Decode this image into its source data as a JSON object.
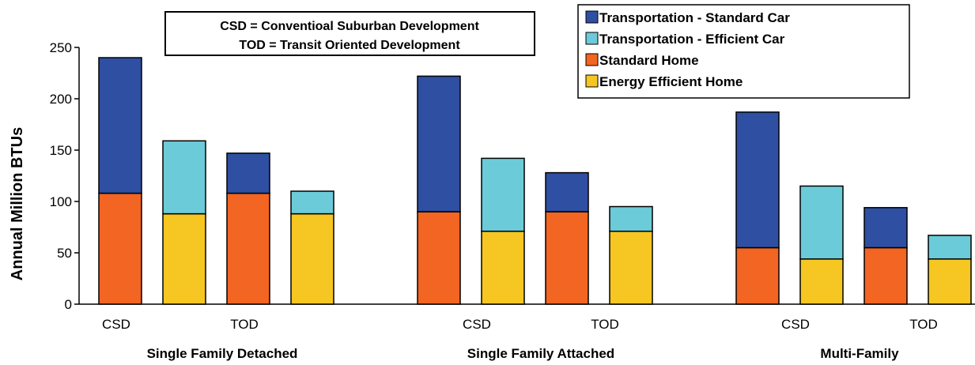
{
  "chart_data": {
    "type": "bar",
    "stacked": true,
    "ylabel": "Annual Million BTUs",
    "ylim": [
      0,
      250
    ],
    "yticks": [
      0,
      50,
      100,
      150,
      200,
      250
    ],
    "grid": false,
    "legend_position": "top-right",
    "notes": [
      "CSD = Conventioal Suburban Development",
      "TOD = Transit Oriented Development"
    ],
    "legend": [
      {
        "name": "Transportation - Standard Car",
        "color": "#2e4fa2"
      },
      {
        "name": "Transportation  - Efficient Car",
        "color": "#6ccbd8"
      },
      {
        "name": "Standard Home",
        "color": "#f26522"
      },
      {
        "name": "Energy Efficient Home",
        "color": "#f6c623"
      }
    ],
    "groups": [
      {
        "name": "Single Family Detached",
        "sub_labels": [
          "CSD",
          "TOD"
        ],
        "bars": [
          {
            "home": 108,
            "home_color": "#f26522",
            "transport": 132,
            "transport_color": "#2e4fa2"
          },
          {
            "home": 88,
            "home_color": "#f6c623",
            "transport": 71,
            "transport_color": "#6ccbd8"
          },
          {
            "home": 108,
            "home_color": "#f26522",
            "transport": 39,
            "transport_color": "#2e4fa2"
          },
          {
            "home": 88,
            "home_color": "#f6c623",
            "transport": 22,
            "transport_color": "#6ccbd8"
          }
        ]
      },
      {
        "name": "Single Family Attached",
        "sub_labels": [
          "CSD",
          "TOD"
        ],
        "bars": [
          {
            "home": 90,
            "home_color": "#f26522",
            "transport": 132,
            "transport_color": "#2e4fa2"
          },
          {
            "home": 71,
            "home_color": "#f6c623",
            "transport": 71,
            "transport_color": "#6ccbd8"
          },
          {
            "home": 90,
            "home_color": "#f26522",
            "transport": 38,
            "transport_color": "#2e4fa2"
          },
          {
            "home": 71,
            "home_color": "#f6c623",
            "transport": 24,
            "transport_color": "#6ccbd8"
          }
        ]
      },
      {
        "name": "Multi-Family",
        "sub_labels": [
          "CSD",
          "TOD"
        ],
        "bars": [
          {
            "home": 55,
            "home_color": "#f26522",
            "transport": 132,
            "transport_color": "#2e4fa2"
          },
          {
            "home": 44,
            "home_color": "#f6c623",
            "transport": 71,
            "transport_color": "#6ccbd8"
          },
          {
            "home": 55,
            "home_color": "#f26522",
            "transport": 39,
            "transport_color": "#2e4fa2"
          },
          {
            "home": 44,
            "home_color": "#f6c623",
            "transport": 23,
            "transport_color": "#6ccbd8"
          }
        ]
      }
    ]
  }
}
